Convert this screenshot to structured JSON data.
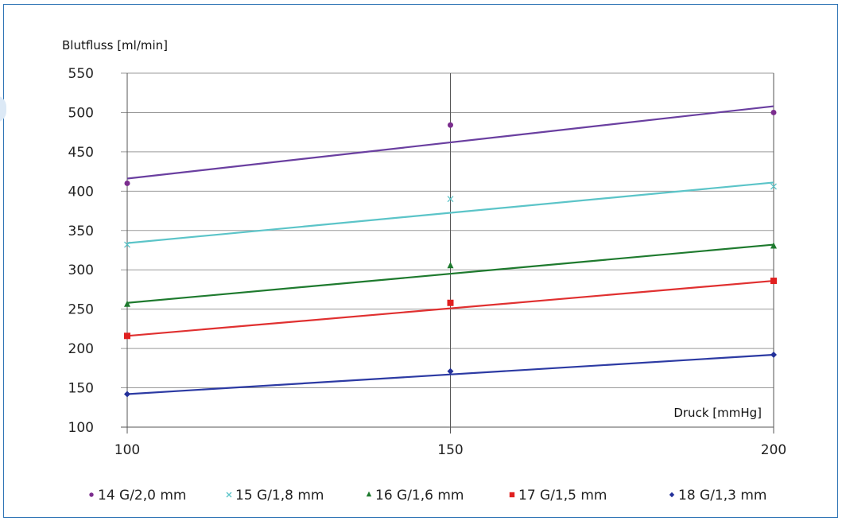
{
  "chart_data": {
    "type": "line",
    "title": "",
    "ylabel": "Blutfluss [ml/min]",
    "xlabel": "Druck [mmHg]",
    "x": [
      100,
      150,
      200
    ],
    "xlim": [
      100,
      200
    ],
    "ylim": [
      100,
      550
    ],
    "y_ticks": [
      100,
      150,
      200,
      250,
      300,
      350,
      400,
      450,
      500,
      550
    ],
    "x_ticks": [
      100,
      150,
      200
    ],
    "grid": "horizontal lines at every y tick; vertical line at x=150",
    "legend_position": "bottom",
    "series": [
      {
        "name": "14 G/2,0 mm",
        "marker": "circle",
        "color": "#7b2d8e",
        "line_color": "#6a3fa0",
        "points": [
          410,
          484,
          500
        ],
        "trend": [
          416,
          508
        ]
      },
      {
        "name": "15 G/1,8 mm",
        "marker": "x",
        "color": "#5bc4c8",
        "line_color": "#5bc4c8",
        "points": [
          332,
          390,
          406
        ],
        "trend": [
          334,
          411
        ]
      },
      {
        "name": "16 G/1,6 mm",
        "marker": "triangle",
        "color": "#1e7a2e",
        "line_color": "#1e7a2e",
        "points": [
          256,
          305,
          330
        ],
        "trend": [
          258,
          332
        ]
      },
      {
        "name": "17 G/1,5 mm",
        "marker": "square",
        "color": "#e02020",
        "line_color": "#e03030",
        "points": [
          216,
          258,
          286
        ],
        "trend": [
          216,
          286
        ]
      },
      {
        "name": "18 G/1,3 mm",
        "marker": "diamond",
        "color": "#23309a",
        "line_color": "#2c3aa3",
        "points": [
          142,
          171,
          192
        ],
        "trend": [
          142,
          192
        ]
      }
    ]
  }
}
